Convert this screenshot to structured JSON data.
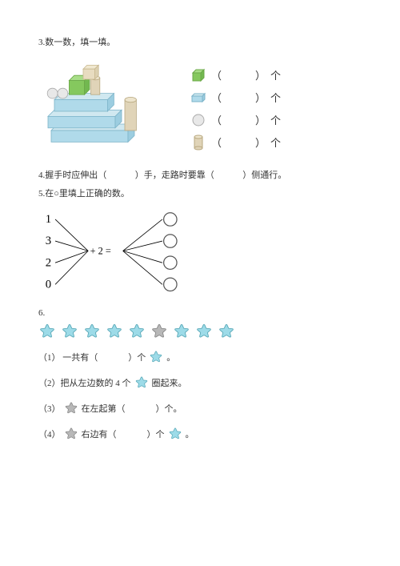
{
  "colors": {
    "text": "#333333",
    "star_blue_fill": "#9ddbe8",
    "star_blue_stroke": "#5aa9b8",
    "star_grey_fill": "#b8b8b8",
    "star_grey_stroke": "#888888",
    "cube_green": "#85c85e",
    "cube_cream": "#e8dcc0",
    "rect_blue": "#b0daea",
    "rect_blue_dark": "#7db4c9",
    "cylinder": "#e0d4b8",
    "sphere": "#d8d8d8",
    "circle_stroke": "#555555",
    "line_black": "#000000"
  },
  "q3": {
    "title": "3.数一数，填一填。",
    "rows": [
      {
        "shape": "cube-green",
        "open": "（",
        "close": "）",
        "unit": "个"
      },
      {
        "shape": "rect-blue",
        "open": "（",
        "close": "）",
        "unit": "个"
      },
      {
        "shape": "circle",
        "open": "（",
        "close": "）",
        "unit": "个"
      },
      {
        "shape": "cylinder",
        "open": "（",
        "close": "）",
        "unit": "个"
      }
    ]
  },
  "q4": {
    "text_a": "4.握手时应伸出（",
    "text_b": "）手，走路时要靠（",
    "text_c": "）侧通行。"
  },
  "q5": {
    "title": "5.在○里填上正确的数。",
    "left_numbers": [
      "1",
      "3",
      "2",
      "0"
    ],
    "center": "+ 2 ="
  },
  "q6": {
    "title": "6.",
    "stars": [
      "blue",
      "blue",
      "blue",
      "blue",
      "blue",
      "grey",
      "blue",
      "blue",
      "blue"
    ],
    "sub1_a": "（1） 一共有（",
    "sub1_b": "）个",
    "sub1_c": "。",
    "sub2_a": "（2）把从左边数的 4 个",
    "sub2_b": "圈起来。",
    "sub3_a": "（3）",
    "sub3_b": "在左起第（",
    "sub3_c": "）个。",
    "sub4_a": "（4）",
    "sub4_b": "右边有（",
    "sub4_c": "）个",
    "sub4_d": "。"
  }
}
